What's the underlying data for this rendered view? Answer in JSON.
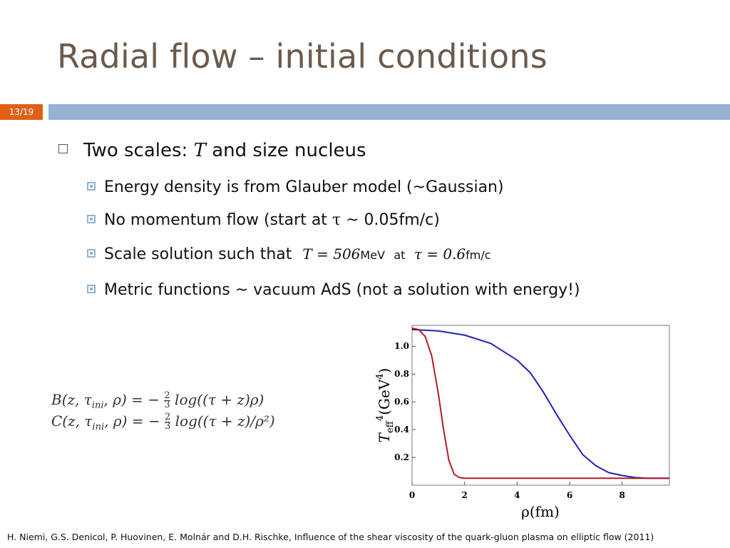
{
  "slide": {
    "title": "Radial flow – initial conditions",
    "number": "13/19",
    "accent_color": "#e0601a",
    "band_color": "#93b3d0"
  },
  "bullets": {
    "main_pre": "Two scales:",
    "main_sym": "T",
    "main_post": "and size nucleus",
    "sub1": "Energy density is from Glauber model (~Gaussian)",
    "sub2_pre": "No momentum flow (start at",
    "sub2_sym": "τ",
    "sub2_post": "~ 0.05fm/c)",
    "sub3_pre": "Scale solution such that",
    "sub3_eq1": "T = 506",
    "sub3_unit1": "MeV",
    "sub3_at": "at",
    "sub3_eq2": "τ = 0.6",
    "sub3_unit2": "fm/c",
    "sub4": "Metric functions ~ vacuum AdS (not a solution with energy!)"
  },
  "formulas": {
    "line1_lhs": "B(z, τ",
    "line1_sub": "ini",
    "line1_mid": ", ρ) =  −",
    "line1_num": "2",
    "line1_den": "3",
    "line1_rhs": "log((τ + z)ρ)",
    "line2_lhs": "C(z, τ",
    "line2_sub": "ini",
    "line2_mid": ", ρ) = −",
    "line2_num": "2",
    "line2_den": "3",
    "line2_rhs": "log((τ + z)/ρ²)"
  },
  "chart_data": {
    "type": "line",
    "xlabel": "ρ(fm)",
    "ylabel": "T_eff^4(GeV^4)",
    "xlim": [
      0,
      9.8
    ],
    "ylim": [
      0,
      1.15
    ],
    "x_ticks": [
      "0",
      "2",
      "4",
      "6",
      "8"
    ],
    "y_ticks": [
      "0.2",
      "0.4",
      "0.6",
      "0.8",
      "1.0"
    ],
    "series": [
      {
        "color": "#1e22b4",
        "x": [
          0,
          1,
          2,
          3,
          4,
          4.5,
          5,
          5.5,
          6,
          6.5,
          7,
          7.5,
          8,
          8.5,
          9,
          9.8
        ],
        "y": [
          1.12,
          1.11,
          1.08,
          1.02,
          0.9,
          0.81,
          0.67,
          0.51,
          0.36,
          0.22,
          0.14,
          0.09,
          0.07,
          0.055,
          0.05,
          0.05
        ]
      },
      {
        "color": "#b01e22",
        "x": [
          0,
          0.25,
          0.5,
          0.75,
          1.0,
          1.2,
          1.4,
          1.6,
          1.8,
          2.0,
          2.5,
          4,
          6,
          8,
          9.8
        ],
        "y": [
          1.13,
          1.12,
          1.07,
          0.93,
          0.66,
          0.4,
          0.18,
          0.08,
          0.055,
          0.05,
          0.05,
          0.05,
          0.05,
          0.05,
          0.05
        ]
      }
    ]
  },
  "citation": "H. Niemi, G.S. Denicol, P. Huovinen, E. Molnár and D.H. Rischke, Influence of the shear viscosity of the quark-gluon plasma on elliptic flow (2011)"
}
